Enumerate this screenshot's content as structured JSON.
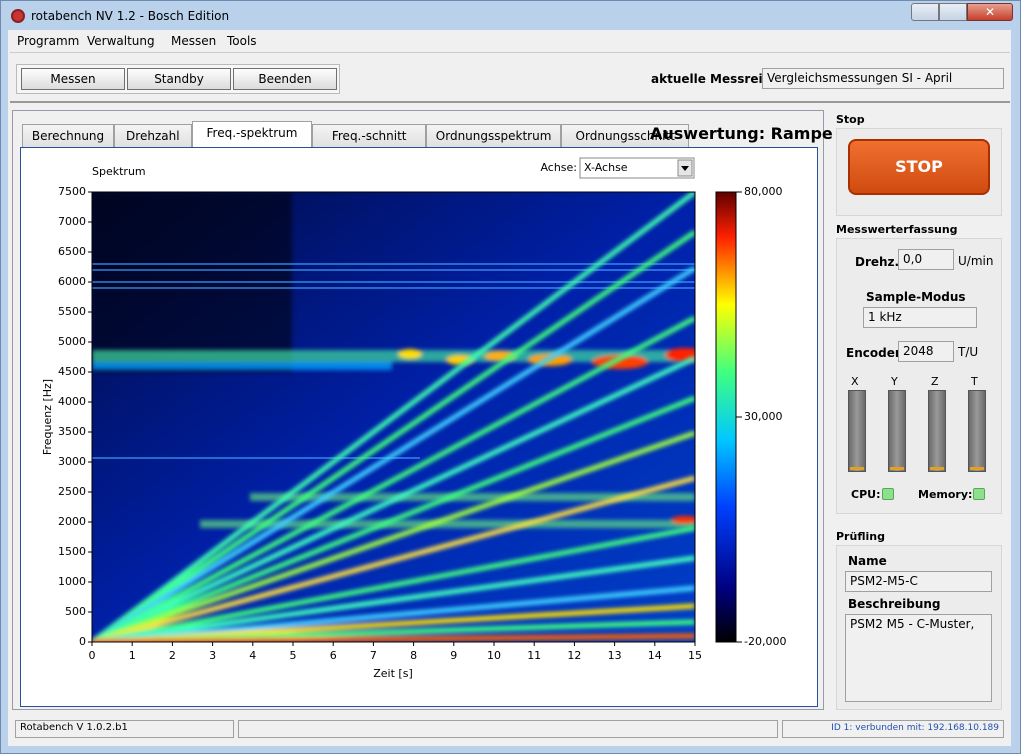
{
  "window": {
    "title": "rotabench NV 1.2 - Bosch Edition"
  },
  "menu": [
    "Programm",
    "Verwaltung",
    "Messen",
    "Tools"
  ],
  "toolbar": {
    "buttons": [
      "Messen",
      "Standby",
      "Beenden"
    ],
    "series_label": "aktuelle Messreihe:",
    "series_value": "Vergleichsmessungen SI - April"
  },
  "tabs": {
    "items": [
      "Berechnung",
      "Drehzahl",
      "Freq.-spektrum",
      "Freq.-schnitt",
      "Ordnungsspektrum",
      "Ordnungsschnitt"
    ],
    "active": 2,
    "heading": "Auswertung: Rampe"
  },
  "chart_data": {
    "type": "heatmap",
    "title": "Spektrum",
    "axis_selector_label": "Achse:",
    "axis_selector_value": "X-Achse",
    "xlabel": "Zeit [s]",
    "ylabel": "Frequenz [Hz]",
    "xlim": [
      0,
      15
    ],
    "xticks": [
      0,
      1,
      2,
      3,
      4,
      5,
      6,
      7,
      8,
      9,
      10,
      11,
      12,
      13,
      14,
      15
    ],
    "ylim": [
      0,
      7500
    ],
    "yticks": [
      0,
      500,
      1000,
      1500,
      2000,
      2500,
      3000,
      3500,
      4000,
      4500,
      5000,
      5500,
      6000,
      6500,
      7000,
      7500
    ],
    "colorbar": {
      "lim": [
        -20,
        80
      ],
      "ticks": [
        {
          "value": 80,
          "label": "80,000"
        },
        {
          "value": 30,
          "label": "30,000"
        },
        {
          "value": -20,
          "label": "-20,000"
        }
      ]
    }
  },
  "side": {
    "stop": {
      "section": "Stop",
      "button": "STOP"
    },
    "acquisition": {
      "section": "Messwerterfassung",
      "speed_label": "Drehz.:",
      "speed_value": "0,0",
      "speed_unit": "U/min",
      "sample_mode_label": "Sample-Modus",
      "sample_mode_value": "1 kHz",
      "encoder_label": "Encoder:",
      "encoder_value": "2048",
      "encoder_unit": "T/U",
      "meters": [
        "X",
        "Y",
        "Z",
        "T"
      ],
      "cpu_label": "CPU:",
      "memory_label": "Memory:"
    },
    "dut": {
      "section": "Prüfling",
      "name_label": "Name",
      "name_value": "PSM2-M5-C",
      "desc_label": "Beschreibung",
      "desc_value": "PSM2 M5 - C-Muster,"
    }
  },
  "statusbar": {
    "version": "Rotabench V 1.0.2.b1",
    "connection": "ID 1: verbunden mit: 192.168.10.189"
  }
}
